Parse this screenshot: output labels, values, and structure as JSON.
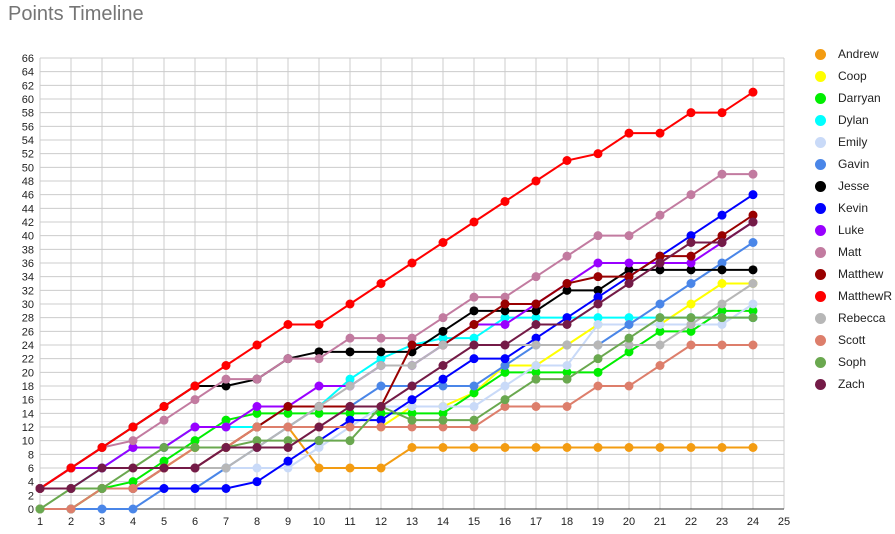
{
  "chart_data": {
    "type": "line",
    "title": "Points Timeline",
    "xlabel": "",
    "ylabel": "",
    "xlim": [
      1,
      25
    ],
    "ylim": [
      0,
      66
    ],
    "x_ticks": [
      1,
      2,
      3,
      4,
      5,
      6,
      7,
      8,
      9,
      10,
      11,
      12,
      13,
      14,
      15,
      16,
      17,
      18,
      19,
      20,
      21,
      22,
      23,
      24,
      25
    ],
    "y_ticks": [
      0,
      2,
      4,
      6,
      8,
      10,
      12,
      14,
      16,
      18,
      20,
      22,
      24,
      26,
      28,
      30,
      32,
      34,
      36,
      38,
      40,
      42,
      44,
      46,
      48,
      50,
      52,
      54,
      56,
      58,
      60,
      62,
      64,
      66
    ],
    "grid": true,
    "legend_position": "right",
    "x": [
      1,
      2,
      3,
      4,
      5,
      6,
      7,
      8,
      9,
      10,
      11,
      12,
      13,
      14,
      15,
      16,
      17,
      18,
      19,
      20,
      21,
      22,
      23,
      24
    ],
    "series": [
      {
        "name": "Andrew",
        "color": "#f39c12",
        "values": [
          0,
          0,
          3,
          3,
          6,
          9,
          9,
          12,
          12,
          6,
          6,
          6,
          9,
          9,
          9,
          9,
          9,
          9,
          9,
          9,
          9,
          9,
          9,
          9
        ]
      },
      {
        "name": "Coop",
        "color": "#ffff00",
        "values": [
          3,
          3,
          3,
          3,
          6,
          9,
          9,
          12,
          12,
          12,
          12,
          12,
          15,
          15,
          17,
          21,
          21,
          24,
          27,
          27,
          27,
          30,
          33,
          33
        ]
      },
      {
        "name": "Darryan",
        "color": "#00ee00",
        "values": [
          0,
          0,
          3,
          4,
          7,
          10,
          13,
          14,
          14,
          14,
          14,
          14,
          14,
          14,
          17,
          20,
          20,
          20,
          20,
          23,
          26,
          26,
          29,
          29
        ]
      },
      {
        "name": "Dylan",
        "color": "#00ffff",
        "values": [
          3,
          3,
          6,
          9,
          9,
          12,
          12,
          12,
          15,
          15,
          19,
          22,
          24,
          25,
          25,
          28,
          28,
          28,
          28,
          28,
          28,
          28,
          28,
          28
        ]
      },
      {
        "name": "Emily",
        "color": "#c9daf8",
        "values": [
          3,
          3,
          3,
          3,
          3,
          3,
          6,
          6,
          6,
          9,
          12,
          15,
          15,
          15,
          15,
          18,
          21,
          21,
          27,
          27,
          27,
          27,
          27,
          30
        ]
      },
      {
        "name": "Gavin",
        "color": "#4a86e8",
        "values": [
          0,
          0,
          0,
          0,
          3,
          3,
          6,
          9,
          12,
          15,
          15,
          18,
          18,
          18,
          18,
          21,
          24,
          24,
          24,
          27,
          30,
          33,
          36,
          39
        ]
      },
      {
        "name": "Jesse",
        "color": "#000000",
        "values": [
          3,
          6,
          9,
          12,
          15,
          18,
          18,
          19,
          22,
          23,
          23,
          23,
          23,
          26,
          29,
          29,
          29,
          32,
          32,
          35,
          35,
          35,
          35,
          35
        ]
      },
      {
        "name": "Kevin",
        "color": "#0000ff",
        "values": [
          3,
          3,
          3,
          3,
          3,
          3,
          3,
          4,
          7,
          10,
          13,
          13,
          16,
          19,
          22,
          22,
          25,
          28,
          31,
          34,
          37,
          40,
          43,
          46
        ]
      },
      {
        "name": "Luke",
        "color": "#9900ff",
        "values": [
          3,
          6,
          6,
          9,
          9,
          12,
          12,
          15,
          15,
          18,
          18,
          21,
          21,
          24,
          27,
          27,
          30,
          33,
          36,
          36,
          36,
          36,
          39,
          42
        ]
      },
      {
        "name": "Matt",
        "color": "#c27ba0",
        "values": [
          3,
          6,
          9,
          10,
          13,
          16,
          19,
          19,
          22,
          22,
          25,
          25,
          25,
          28,
          31,
          31,
          34,
          37,
          40,
          40,
          43,
          46,
          49,
          49
        ]
      },
      {
        "name": "Matthew",
        "color": "#990000",
        "values": [
          3,
          3,
          3,
          3,
          6,
          6,
          9,
          12,
          15,
          15,
          15,
          15,
          24,
          24,
          27,
          30,
          30,
          33,
          34,
          34,
          37,
          37,
          40,
          43
        ]
      },
      {
        "name": "MatthewR",
        "color": "#ff0000",
        "values": [
          3,
          6,
          9,
          12,
          15,
          18,
          21,
          24,
          27,
          27,
          30,
          33,
          36,
          39,
          42,
          45,
          48,
          51,
          52,
          55,
          55,
          58,
          58,
          61
        ]
      },
      {
        "name": "Rebecca",
        "color": "#b7b7b7",
        "values": [
          3,
          3,
          3,
          3,
          6,
          6,
          6,
          9,
          12,
          15,
          18,
          21,
          21,
          24,
          24,
          24,
          24,
          24,
          24,
          24,
          24,
          27,
          30,
          33
        ]
      },
      {
        "name": "Scott",
        "color": "#dd7e6b",
        "values": [
          0,
          0,
          3,
          3,
          6,
          9,
          9,
          12,
          12,
          12,
          12,
          12,
          12,
          12,
          12,
          15,
          15,
          15,
          18,
          18,
          21,
          24,
          24,
          24
        ]
      },
      {
        "name": "Soph",
        "color": "#6aa84f",
        "values": [
          0,
          3,
          3,
          6,
          9,
          9,
          9,
          10,
          10,
          10,
          10,
          15,
          13,
          13,
          13,
          16,
          19,
          19,
          22,
          25,
          28,
          28,
          28,
          28
        ]
      },
      {
        "name": "Zach",
        "color": "#741b47",
        "values": [
          3,
          3,
          6,
          6,
          6,
          6,
          9,
          9,
          9,
          12,
          15,
          15,
          18,
          21,
          24,
          24,
          27,
          27,
          30,
          33,
          36,
          39,
          39,
          42
        ]
      }
    ]
  }
}
